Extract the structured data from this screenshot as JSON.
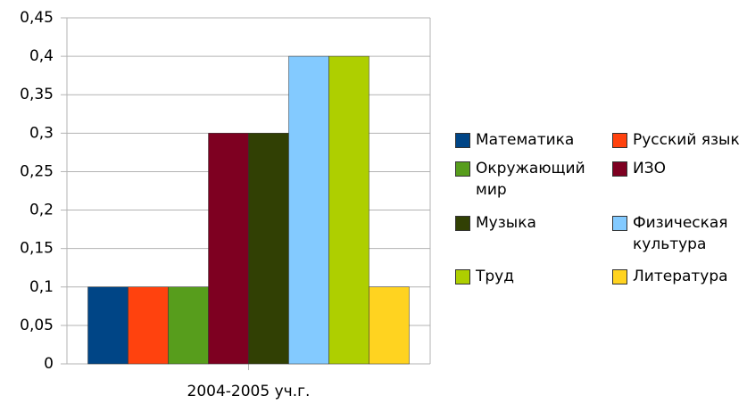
{
  "chart_data": {
    "type": "bar",
    "categories": [
      "2004-2005 уч.г."
    ],
    "series": [
      {
        "name": "Математика",
        "color": "#004586",
        "values": [
          0.1
        ]
      },
      {
        "name": "Русский язык",
        "color": "#ff420e",
        "values": [
          0.1
        ]
      },
      {
        "name": "Окружающий мир",
        "color": "#579d1c",
        "values": [
          0.1
        ]
      },
      {
        "name": "ИЗО",
        "color": "#7e0021",
        "values": [
          0.3
        ]
      },
      {
        "name": "Музыка",
        "color": "#314004",
        "values": [
          0.3
        ]
      },
      {
        "name": "Физическая культура",
        "color": "#83caff",
        "values": [
          0.4
        ]
      },
      {
        "name": "Труд",
        "color": "#aecf00",
        "values": [
          0.4
        ]
      },
      {
        "name": "Литература",
        "color": "#ffd320",
        "values": [
          0.1
        ]
      }
    ],
    "ylim": [
      0,
      0.45
    ],
    "yticks": [
      0,
      {
        "value": 0.05,
        "label": "0,05"
      },
      {
        "value": 0.1,
        "label": "0,1"
      },
      {
        "value": 0.15,
        "label": "0,15"
      },
      {
        "value": 0.2,
        "label": "0,2"
      },
      {
        "value": 0.25,
        "label": "0,25"
      },
      {
        "value": 0.3,
        "label": "0,3"
      },
      {
        "value": 0.35,
        "label": "0,35"
      },
      {
        "value": 0.4,
        "label": "0,4"
      },
      {
        "value": 0.45,
        "label": "0,45"
      }
    ],
    "grid": true,
    "legend": "right"
  }
}
